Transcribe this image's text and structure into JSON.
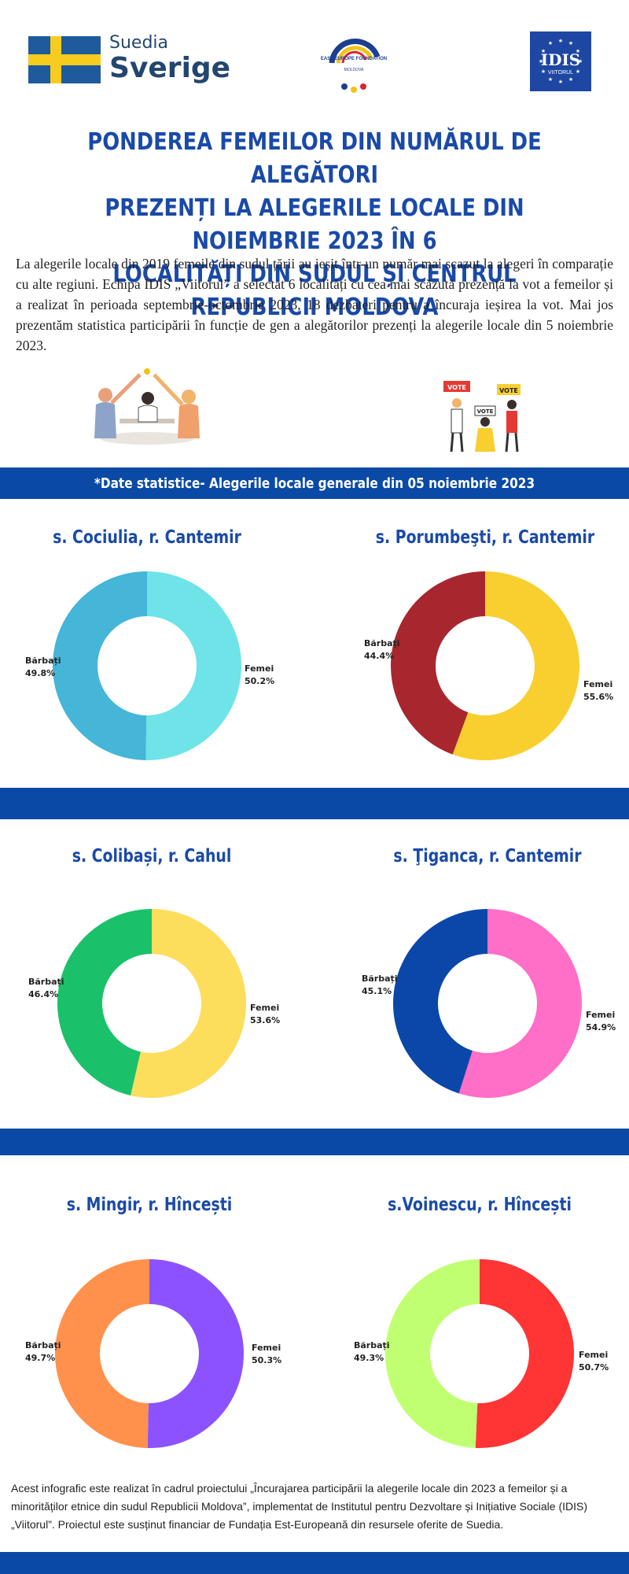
{
  "header": {
    "sweden_logo": {
      "line1": "Suedia",
      "line2": "Sverige"
    },
    "eef_logo": {
      "text": "EAST EUROPE FOUNDATION",
      "sub": "MOLDOVA"
    },
    "idis_logo": {
      "text": "IDIS",
      "sub": "VIITORUL"
    }
  },
  "title_lines": [
    "PONDEREA FEMEILOR DIN NUMĂRUL DE ALEGĂTORI",
    "PREZENȚI LA  ALEGERILE LOCALE DIN NOIEMBRIE 2023 ÎN 6",
    "LOCALITĂȚI DIN SUDUL ȘI CENTRUL REPUBLICII MOLDOVA"
  ],
  "intro": "La alegerile locale din 2019 femeile din sudul țării au ieșit într-un număr mai scazut la alegeri în comparație cu alte regiuni. Echipa IDIS „Viitorul” a selectat 6 localități cu cea mai scăzută prezență la vot a femeilor și a realizat în perioada septembrie-octombrie 2023, 18 dezbateri pentru a încuraja ieșirea la vot. Mai jos prezentăm statistica participării în funcție de gen a alegătorilor prezenți  la alegerile locale din 5 noiembrie 2023.",
  "illustration": {
    "vote_sign": "VOTE"
  },
  "stats_banner": "*Date statistice- Alegerile locale generale din 05 noiembrie 2023",
  "chart_data": [
    {
      "type": "pie",
      "title": "s. Cociulia, r. Cantemir",
      "categories": [
        "Femei",
        "Bărbați"
      ],
      "values": [
        50.2,
        49.8
      ],
      "labels": [
        "50.2%",
        "49.8%"
      ],
      "colors": [
        "#6ee3e8",
        "#45b5d8"
      ]
    },
    {
      "type": "pie",
      "title": "s. Porumbeşti, r. Cantemir",
      "categories": [
        "Femei",
        "Bărbați"
      ],
      "values": [
        55.6,
        44.4
      ],
      "labels": [
        "55.6%",
        "44.4%"
      ],
      "colors": [
        "#f8cf2e",
        "#a8262e"
      ]
    },
    {
      "type": "pie",
      "title": "s. Colibași, r. Cahul",
      "categories": [
        "Femei",
        "Bărbați"
      ],
      "values": [
        53.6,
        46.4
      ],
      "labels": [
        "53.6%",
        "46.4%"
      ],
      "colors": [
        "#fddd5c",
        "#1ac16a"
      ]
    },
    {
      "type": "pie",
      "title": "s. Ţiganca, r. Cantemir",
      "categories": [
        "Femei",
        "Bărbați"
      ],
      "values": [
        54.9,
        45.1
      ],
      "labels": [
        "54.9%",
        "45.1%"
      ],
      "colors": [
        "#ff6ec7",
        "#0a47a8"
      ]
    },
    {
      "type": "pie",
      "title": "s. Mingir, r. Hîncești",
      "categories": [
        "Femei",
        "Bărbați"
      ],
      "values": [
        50.3,
        49.7
      ],
      "labels": [
        "50.3%",
        "49.7%"
      ],
      "colors": [
        "#8c52ff",
        "#ff914d"
      ]
    },
    {
      "type": "pie",
      "title": "s.Voinescu, r. Hîncești",
      "categories": [
        "Femei",
        "Bărbați"
      ],
      "values": [
        50.7,
        49.3
      ],
      "labels": [
        "50.7%",
        "49.3%"
      ],
      "colors": [
        "#ff3434",
        "#c1ff72"
      ]
    }
  ],
  "footer": "Acest infografic este realizat în cadrul proiectului „Încurajarea participării la alegerile locale din 2023 a femeilor și a minorităților etnice din sudul Republicii Moldova”, implementat de Institutul pentru Dezvoltare și Inițiative Sociale (IDIS) „Viitorul”. Proiectul este susținut financiar de Fundația Est-Europeană din resursele oferite de Suedia.",
  "colors": {
    "band": "#0a4aa6",
    "title": "#1a4aa8"
  }
}
